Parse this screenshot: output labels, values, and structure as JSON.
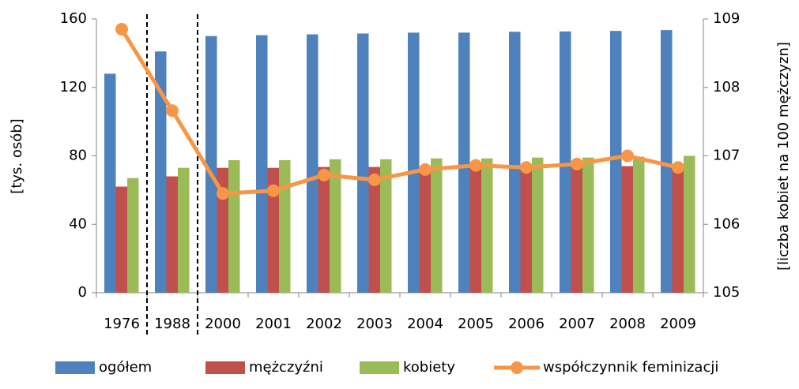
{
  "chart_data": {
    "type": "bar",
    "categories": [
      "1976",
      "1988",
      "2000",
      "2001",
      "2002",
      "2003",
      "2004",
      "2005",
      "2006",
      "2007",
      "2008",
      "2009"
    ],
    "ylabel": "[tys. osób]",
    "y2label": "[liczba kobiet na 100 mężczyzn]",
    "ylim": [
      0,
      160
    ],
    "yticks": [
      0,
      40,
      80,
      120,
      160
    ],
    "y2lim": [
      105,
      109
    ],
    "y2ticks": [
      105,
      106,
      107,
      108,
      109
    ],
    "legend": "bottom",
    "series": [
      {
        "name": "ogółem",
        "type": "bar",
        "color": "#4f81bd",
        "values": [
          128,
          141,
          150,
          150.5,
          151,
          151.5,
          152,
          152,
          152.5,
          152.7,
          153,
          153.5
        ]
      },
      {
        "name": "mężczyźni",
        "type": "bar",
        "color": "#c0504d",
        "values": [
          62,
          68,
          73,
          73,
          73.5,
          73.5,
          73.5,
          73.5,
          73.7,
          73.8,
          74,
          74
        ]
      },
      {
        "name": "kobiety",
        "type": "bar",
        "color": "#9bbb59",
        "values": [
          67,
          73,
          77.5,
          77.5,
          78,
          78,
          78.5,
          78.5,
          79,
          79,
          79.5,
          80
        ]
      },
      {
        "name": "współczynnik feminizacji",
        "type": "line",
        "axis": "y2",
        "color": "#f79646",
        "values": [
          108.85,
          107.66,
          106.45,
          106.49,
          106.72,
          106.65,
          106.8,
          106.86,
          106.83,
          106.88,
          107.0,
          106.83
        ]
      }
    ]
  }
}
